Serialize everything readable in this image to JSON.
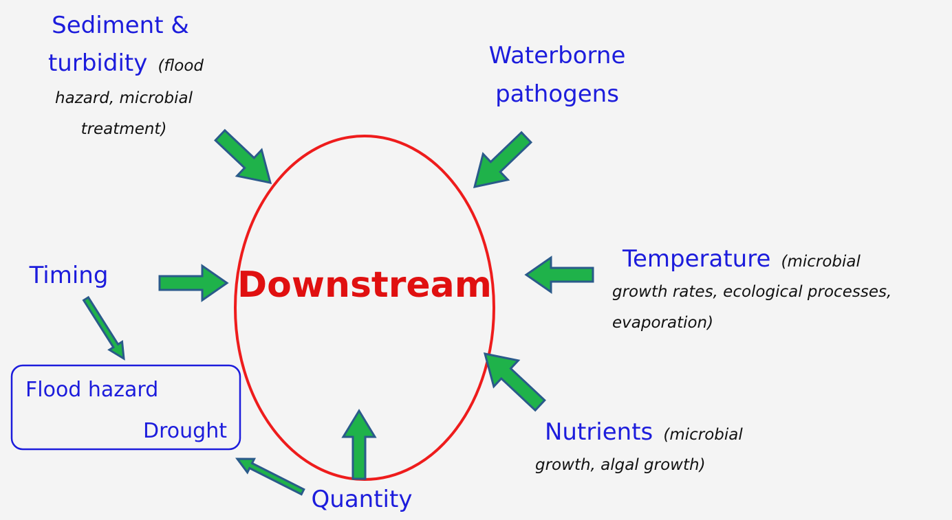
{
  "center": {
    "label": "Downstream"
  },
  "factors": [
    {
      "label_lines": [
        "Sediment &",
        "turbidity"
      ],
      "note_lines": [
        "(flood",
        "hazard, microbial",
        "treatment)"
      ]
    },
    {
      "label_lines": [
        "Waterborne",
        "pathogens"
      ]
    },
    {
      "label_lines": [
        "Temperature"
      ],
      "note_lines": [
        "(microbial",
        "growth rates, ecological processes,",
        "evaporation)"
      ]
    },
    {
      "label_lines": [
        "Nutrients"
      ],
      "note_lines": [
        "(microbial",
        "growth, algal growth)"
      ]
    },
    {
      "label_lines": [
        "Quantity"
      ]
    },
    {
      "label_lines": [
        "Timing"
      ]
    }
  ],
  "outcome_box": {
    "lines": [
      "Flood hazard",
      "Drought"
    ]
  }
}
